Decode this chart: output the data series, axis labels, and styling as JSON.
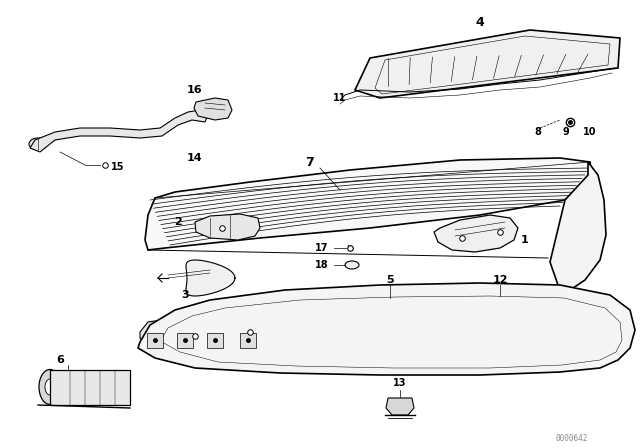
{
  "bg_color": "#ffffff",
  "line_color": "#000000",
  "fig_width": 6.4,
  "fig_height": 4.48,
  "dpi": 100,
  "watermark": "0000642"
}
